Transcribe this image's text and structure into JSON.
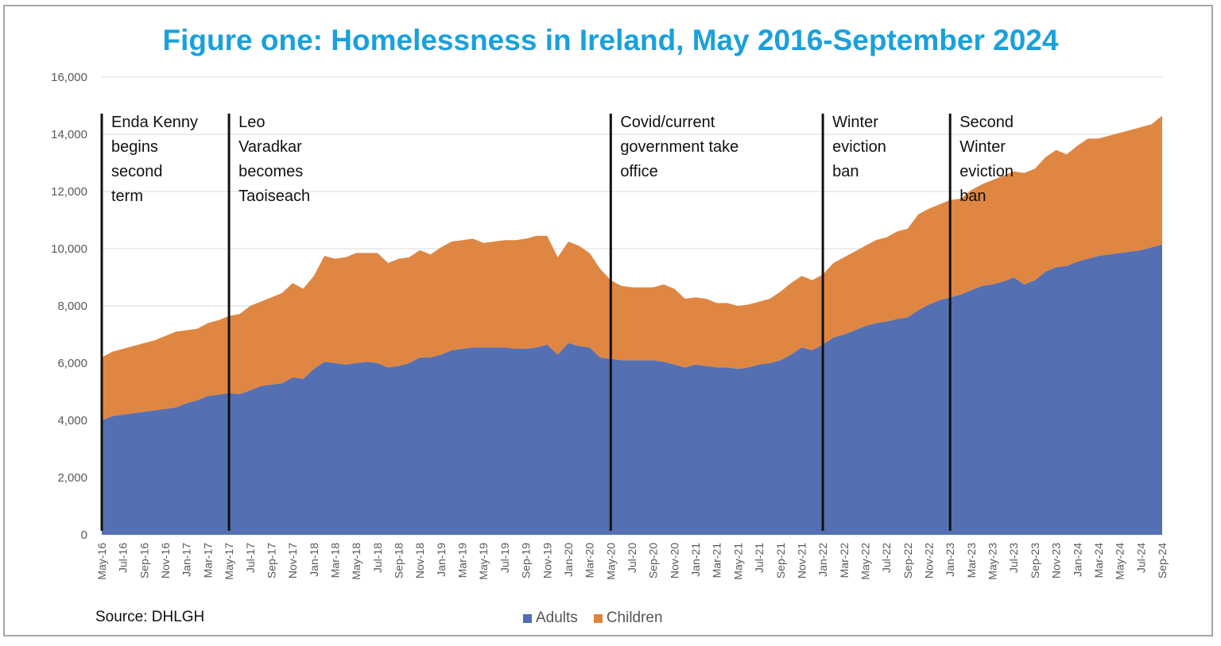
{
  "chart_data": {
    "type": "area",
    "title": "Figure one: Homelessness in Ireland, May 2016-September 2024",
    "stacked": true,
    "ylim": [
      0,
      16000
    ],
    "yticks": [
      0,
      2000,
      4000,
      6000,
      8000,
      10000,
      12000,
      14000,
      16000
    ],
    "ytick_labels": [
      "0",
      "2,000",
      "4,000",
      "6,000",
      "8,000",
      "10,000",
      "12,000",
      "14,000",
      "16,000"
    ],
    "grid": true,
    "legend_position": "bottom",
    "xtick_labels": [
      "May-16",
      "Jul-16",
      "Sep-16",
      "Nov-16",
      "Jan-17",
      "Mar-17",
      "May-17",
      "Jul-17",
      "Sep-17",
      "Nov-17",
      "Jan-18",
      "Mar-18",
      "May-18",
      "Jul-18",
      "Sep-18",
      "Nov-18",
      "Jan-19",
      "Mar-19",
      "May-19",
      "Jul-19",
      "Sep-19",
      "Nov-19",
      "Jan-20",
      "Mar-20",
      "May-20",
      "Jul-20",
      "Sep-20",
      "Nov-20",
      "Jan-21",
      "Mar-21",
      "May-21",
      "Jul-21",
      "Sep-21",
      "Nov-21",
      "Jan-22",
      "Mar-22",
      "May-22",
      "Jul-22",
      "Sep-22",
      "Nov-22",
      "Jan-23",
      "Mar-23",
      "May-23",
      "Jul-23",
      "Sep-23",
      "Nov-23",
      "Jan-24",
      "Mar-24",
      "May-24",
      "Jul-24",
      "Sep-24"
    ],
    "x_months": [
      "May-16",
      "Jun-16",
      "Jul-16",
      "Aug-16",
      "Sep-16",
      "Oct-16",
      "Nov-16",
      "Dec-16",
      "Jan-17",
      "Feb-17",
      "Mar-17",
      "Apr-17",
      "May-17",
      "Jun-17",
      "Jul-17",
      "Aug-17",
      "Sep-17",
      "Oct-17",
      "Nov-17",
      "Dec-17",
      "Jan-18",
      "Feb-18",
      "Mar-18",
      "Apr-18",
      "May-18",
      "Jun-18",
      "Jul-18",
      "Aug-18",
      "Sep-18",
      "Oct-18",
      "Nov-18",
      "Dec-18",
      "Jan-19",
      "Feb-19",
      "Mar-19",
      "Apr-19",
      "May-19",
      "Jun-19",
      "Jul-19",
      "Aug-19",
      "Sep-19",
      "Oct-19",
      "Nov-19",
      "Dec-19",
      "Jan-20",
      "Feb-20",
      "Mar-20",
      "Apr-20",
      "May-20",
      "Jun-20",
      "Jul-20",
      "Aug-20",
      "Sep-20",
      "Oct-20",
      "Nov-20",
      "Dec-20",
      "Jan-21",
      "Feb-21",
      "Mar-21",
      "Apr-21",
      "May-21",
      "Jun-21",
      "Jul-21",
      "Aug-21",
      "Sep-21",
      "Oct-21",
      "Nov-21",
      "Dec-21",
      "Jan-22",
      "Feb-22",
      "Mar-22",
      "Apr-22",
      "May-22",
      "Jun-22",
      "Jul-22",
      "Aug-22",
      "Sep-22",
      "Oct-22",
      "Nov-22",
      "Dec-22",
      "Jan-23",
      "Feb-23",
      "Mar-23",
      "Apr-23",
      "May-23",
      "Jun-23",
      "Jul-23",
      "Aug-23",
      "Sep-23",
      "Oct-23",
      "Nov-23",
      "Dec-23",
      "Jan-24",
      "Feb-24",
      "Mar-24",
      "Apr-24",
      "May-24",
      "Jun-24",
      "Jul-24",
      "Aug-24",
      "Sep-24"
    ],
    "series": [
      {
        "name": "Adults",
        "color": "#5470b2",
        "values": [
          4000,
          4150,
          4200,
          4250,
          4300,
          4350,
          4400,
          4450,
          4600,
          4700,
          4850,
          4900,
          4950,
          4920,
          5050,
          5200,
          5250,
          5300,
          5500,
          5450,
          5800,
          6050,
          6000,
          5950,
          6000,
          6050,
          6000,
          5850,
          5900,
          6000,
          6200,
          6200,
          6300,
          6450,
          6500,
          6550,
          6550,
          6550,
          6550,
          6500,
          6500,
          6550,
          6650,
          6300,
          6700,
          6600,
          6550,
          6200,
          6150,
          6100,
          6100,
          6100,
          6100,
          6050,
          5950,
          5850,
          5950,
          5900,
          5850,
          5850,
          5800,
          5850,
          5950,
          6000,
          6100,
          6300,
          6550,
          6450,
          6650,
          6900,
          7000,
          7150,
          7300,
          7400,
          7450,
          7550,
          7600,
          7850,
          8050,
          8200,
          8300,
          8400,
          8550,
          8700,
          8750,
          8850,
          9000,
          8750,
          8900,
          9200,
          9350,
          9400,
          9550,
          9650,
          9750,
          9800,
          9850,
          9900,
          9950,
          10050,
          10150
        ]
      },
      {
        "name": "Children",
        "color": "#e08643",
        "values": [
          2200,
          2250,
          2300,
          2350,
          2400,
          2450,
          2550,
          2650,
          2550,
          2500,
          2550,
          2600,
          2700,
          2800,
          2950,
          2950,
          3050,
          3150,
          3300,
          3150,
          3250,
          3700,
          3650,
          3750,
          3850,
          3800,
          3850,
          3650,
          3750,
          3700,
          3750,
          3600,
          3750,
          3800,
          3800,
          3800,
          3650,
          3700,
          3750,
          3800,
          3850,
          3900,
          3800,
          3400,
          3550,
          3500,
          3300,
          3100,
          2750,
          2600,
          2550,
          2550,
          2550,
          2700,
          2650,
          2400,
          2350,
          2350,
          2250,
          2250,
          2200,
          2200,
          2200,
          2250,
          2400,
          2500,
          2500,
          2450,
          2450,
          2600,
          2700,
          2750,
          2800,
          2900,
          2950,
          3050,
          3100,
          3350,
          3350,
          3350,
          3400,
          3350,
          3500,
          3550,
          3650,
          3700,
          3700,
          3900,
          3900,
          4000,
          4100,
          3900,
          4050,
          4200,
          4100,
          4150,
          4200,
          4250,
          4300,
          4300,
          4500
        ]
      }
    ],
    "annotations": [
      {
        "x": "May-16",
        "lines": [
          "Enda Kenny",
          "begins",
          "second",
          "term"
        ]
      },
      {
        "x": "May-17",
        "lines": [
          "Leo",
          "Varadkar",
          "becomes",
          "Taoiseach"
        ]
      },
      {
        "x": "May-20",
        "lines": [
          "Covid/current",
          "government take",
          "office"
        ]
      },
      {
        "x": "Jan-22",
        "lines": [
          "Winter",
          "eviction",
          "ban"
        ]
      },
      {
        "x": "Jan-23",
        "lines": [
          "Second",
          "Winter",
          "eviction",
          "ban"
        ]
      }
    ]
  },
  "footer": {
    "source": "Source: DHLGH",
    "legend_adults": "Adults",
    "legend_children": "Children",
    "adults_color": "#4f6eb3",
    "children_color": "#e0843f"
  }
}
